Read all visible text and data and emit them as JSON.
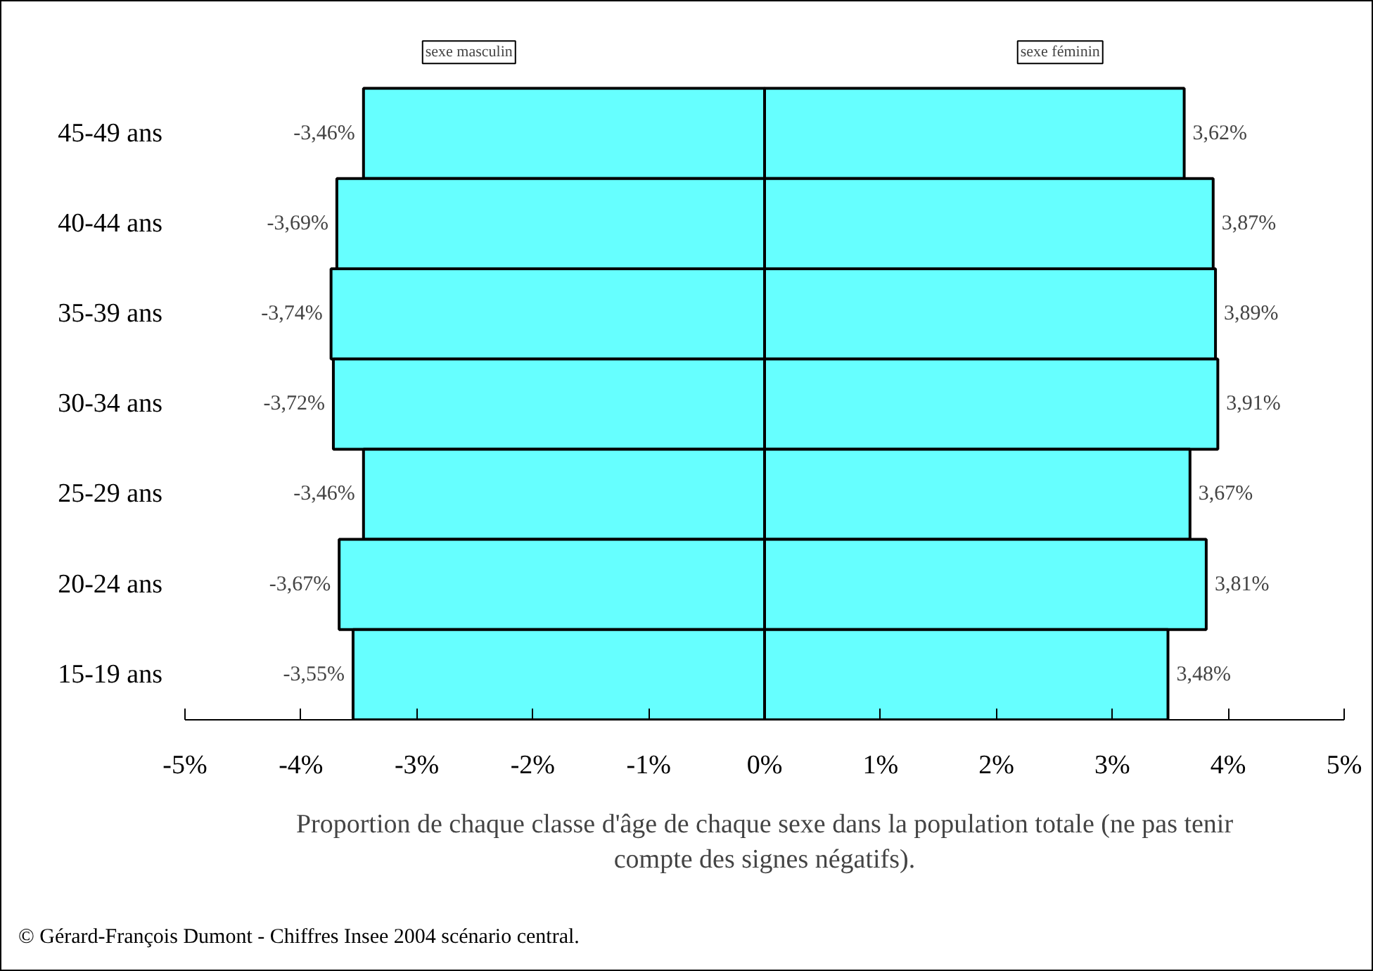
{
  "chart_data": {
    "type": "bar",
    "orientation": "horizontal",
    "stacked": true,
    "categories": [
      "45-49 ans",
      "40-44 ans",
      "35-39 ans",
      "30-34 ans",
      "25-29 ans",
      "20-24 ans",
      "15-19 ans"
    ],
    "series": [
      {
        "name": "sexe masculin",
        "color": "#66ffff",
        "values": [
          -3.46,
          -3.69,
          -3.74,
          -3.72,
          -3.46,
          -3.67,
          -3.55
        ],
        "value_labels": [
          "-3,46%",
          "-3,69%",
          "-3,74%",
          "-3,72%",
          "-3,46%",
          "-3,67%",
          "-3,55%"
        ]
      },
      {
        "name": "sexe féminin",
        "color": "#66ffff",
        "values": [
          3.62,
          3.87,
          3.89,
          3.91,
          3.67,
          3.81,
          3.48
        ],
        "value_labels": [
          "3,62%",
          "3,87%",
          "3,89%",
          "3,91%",
          "3,67%",
          "3,81%",
          "3,48%"
        ]
      }
    ],
    "xlim": [
      -5,
      5
    ],
    "xticks": [
      {
        "value": -5,
        "label": "-5%"
      },
      {
        "value": -4,
        "label": "-4%"
      },
      {
        "value": -3,
        "label": "-3%"
      },
      {
        "value": -2,
        "label": "-2%"
      },
      {
        "value": -1,
        "label": "-1%"
      },
      {
        "value": 0,
        "label": "0%"
      },
      {
        "value": 1,
        "label": "1%"
      },
      {
        "value": 2,
        "label": "2%"
      },
      {
        "value": 3,
        "label": "3%"
      },
      {
        "value": 4,
        "label": "4%"
      },
      {
        "value": 5,
        "label": "5%"
      }
    ],
    "xlabel": "Proportion de chaque classe d'âge de chaque sexe dans la population totale (ne pas tenir compte des signes négatifs).",
    "grid": false,
    "annotations": [
      "© Gérard-François Dumont - Chiffres Insee 2004 scénario central."
    ]
  }
}
